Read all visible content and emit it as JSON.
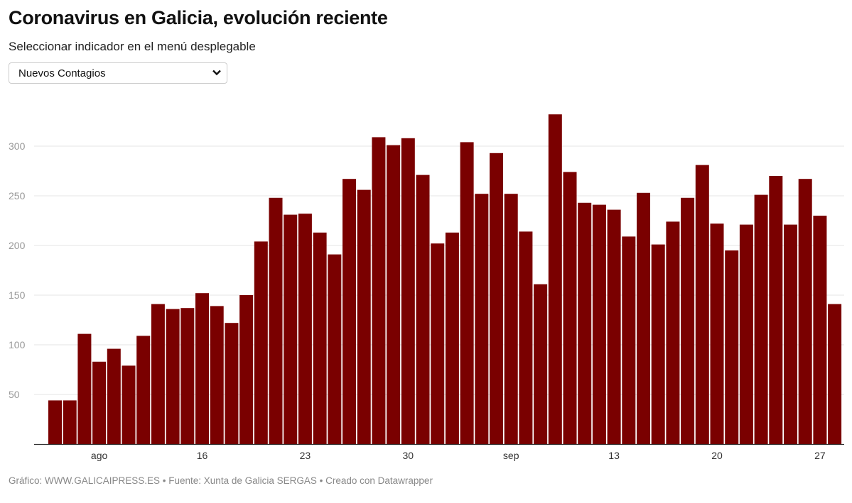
{
  "header": {
    "title": "Coronavirus en Galicia, evolución reciente",
    "subtitle": "Seleccionar indicador en el menú desplegable"
  },
  "dropdown": {
    "selected": "Nuevos Contagios"
  },
  "footer": {
    "text": "Gráfico: WWW.GALICAIPRESS.ES • Fuente: Xunta de Galicia SERGAS • Creado con Datawrapper"
  },
  "colors": {
    "bar": "#7a0000",
    "grid": "#e4e4e4",
    "axis": "#333333",
    "tick_text": "#999999"
  },
  "chart_data": {
    "type": "bar",
    "title": "",
    "xlabel": "",
    "ylabel": "",
    "ylim": [
      0,
      335
    ],
    "grid": true,
    "yticks": [
      50,
      100,
      150,
      200,
      250,
      300
    ],
    "xticks": [
      {
        "index": 3,
        "label": "ago"
      },
      {
        "index": 10,
        "label": "16"
      },
      {
        "index": 17,
        "label": "23"
      },
      {
        "index": 24,
        "label": "30"
      },
      {
        "index": 31,
        "label": "sep"
      },
      {
        "index": 38,
        "label": "13"
      },
      {
        "index": 45,
        "label": "20"
      },
      {
        "index": 52,
        "label": "27"
      }
    ],
    "categories": [
      "ago 6",
      "ago 7",
      "ago 8",
      "ago 9",
      "ago 10",
      "ago 11",
      "ago 12",
      "ago 13",
      "ago 14",
      "ago 15",
      "ago 16",
      "ago 17",
      "ago 18",
      "ago 19",
      "ago 20",
      "ago 21",
      "ago 22",
      "ago 23",
      "ago 24",
      "ago 25",
      "ago 26",
      "ago 27",
      "ago 28",
      "ago 29",
      "ago 30",
      "ago 31",
      "sep 1",
      "sep 2",
      "sep 3",
      "sep 4",
      "sep 5",
      "sep 6",
      "sep 7",
      "sep 8",
      "sep 9",
      "sep 10",
      "sep 11",
      "sep 12",
      "sep 13",
      "sep 14",
      "sep 15",
      "sep 16",
      "sep 17",
      "sep 18",
      "sep 19",
      "sep 20",
      "sep 21",
      "sep 22",
      "sep 23",
      "sep 24",
      "sep 25",
      "sep 26",
      "sep 27",
      "sep 28"
    ],
    "values": [
      44,
      44,
      111,
      83,
      96,
      79,
      109,
      141,
      136,
      137,
      152,
      139,
      122,
      150,
      204,
      248,
      231,
      232,
      213,
      191,
      267,
      256,
      309,
      301,
      308,
      271,
      202,
      213,
      304,
      252,
      293,
      252,
      214,
      161,
      332,
      274,
      243,
      241,
      236,
      209,
      253,
      201,
      224,
      248,
      281,
      222,
      195,
      221,
      251,
      270,
      221,
      267,
      230,
      141
    ]
  }
}
